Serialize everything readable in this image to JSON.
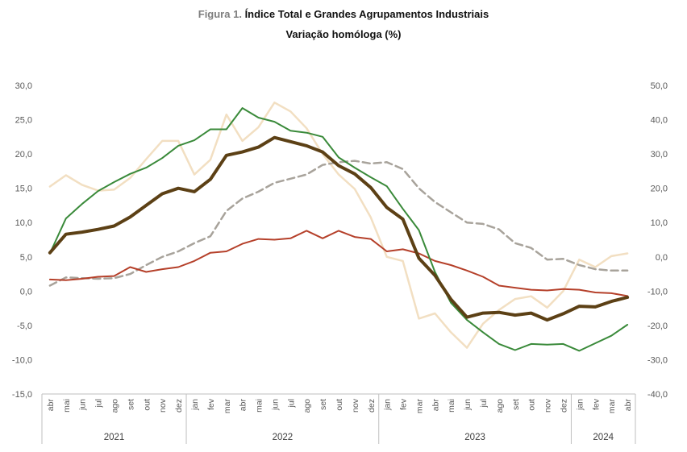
{
  "title": {
    "prefix": "Figura 1.",
    "text": "Índice Total e Grandes Agrupamentos Industriais"
  },
  "subtitle": "Variação homóloga (%)",
  "colors": {
    "total": "#5c4015",
    "green": "#3a8a3a",
    "red": "#b5402a",
    "gray": "#a8a39b",
    "beige": "#f2dfc2"
  },
  "chart_data": {
    "type": "line",
    "title": "Índice Total e Grandes Agrupamentos Industriais",
    "subtitle": "Variação homóloga (%)",
    "x_months": [
      "abr",
      "mai",
      "jun",
      "jul",
      "ago",
      "set",
      "out",
      "nov",
      "dez",
      "jan",
      "fev",
      "mar",
      "abr",
      "mai",
      "jun",
      "jul",
      "ago",
      "set",
      "out",
      "nov",
      "dez",
      "jan",
      "fev",
      "mar",
      "abr",
      "mai",
      "jun",
      "jul",
      "ago",
      "set",
      "out",
      "nov",
      "dez",
      "jan",
      "fev",
      "mar",
      "abr"
    ],
    "year_groups": [
      {
        "label": "2021",
        "start": 0,
        "end": 8
      },
      {
        "label": "2022",
        "start": 9,
        "end": 20
      },
      {
        "label": "2023",
        "start": 21,
        "end": 32
      },
      {
        "label": "2024",
        "start": 33,
        "end": 36
      }
    ],
    "y_left": {
      "min": -15,
      "max": 30,
      "step": 5,
      "ticks": [
        "-15,0",
        "-10,0",
        "-5,0",
        "0,0",
        "5,0",
        "10,0",
        "15,0",
        "20,0",
        "25,0",
        "30,0"
      ]
    },
    "y_right": {
      "min": -40,
      "max": 50,
      "step": 10,
      "ticks": [
        "-40,0",
        "-30,0",
        "-20,0",
        "-10,0",
        "0,0",
        "10,0",
        "20,0",
        "30,0",
        "40,0",
        "50,0"
      ]
    },
    "grid": false,
    "legend": "none",
    "series": [
      {
        "key": "beige",
        "axis": "right",
        "stroke_width": 2.5,
        "values": [
          20.5,
          23.8,
          21.0,
          19.3,
          19.6,
          23.0,
          28.5,
          33.8,
          33.8,
          24.0,
          28.3,
          41.5,
          33.8,
          37.8,
          45.0,
          42.4,
          37.5,
          30.0,
          24.0,
          19.8,
          11.5,
          0.0,
          -1.2,
          -18.0,
          -16.5,
          -22.0,
          -26.5,
          -19.5,
          -15.5,
          -12.3,
          -11.5,
          -14.8,
          -10.0,
          -0.8,
          -3.0,
          0.2,
          1.0
        ]
      },
      {
        "key": "gray",
        "axis": "left",
        "stroke_width": 2.5,
        "dash": "9,5",
        "values": [
          0.8,
          2.0,
          1.9,
          1.8,
          1.9,
          2.5,
          3.8,
          5.0,
          5.8,
          7.0,
          8.0,
          11.7,
          13.5,
          14.5,
          15.8,
          16.4,
          17.0,
          18.4,
          18.8,
          19.0,
          18.6,
          18.8,
          17.8,
          15.0,
          13.0,
          11.5,
          10.0,
          9.8,
          9.0,
          7.0,
          6.3,
          4.6,
          4.7,
          3.8,
          3.2,
          3.0,
          3.0
        ]
      },
      {
        "key": "red",
        "axis": "left",
        "stroke_width": 2,
        "values": [
          1.7,
          1.6,
          1.8,
          2.1,
          2.2,
          3.5,
          2.8,
          3.2,
          3.5,
          4.4,
          5.6,
          5.8,
          6.9,
          7.6,
          7.5,
          7.7,
          8.8,
          7.7,
          8.8,
          7.9,
          7.6,
          5.8,
          6.1,
          5.5,
          4.4,
          3.8,
          3.0,
          2.1,
          0.8,
          0.5,
          0.2,
          0.1,
          0.3,
          0.2,
          -0.2,
          -0.3,
          -0.7
        ]
      },
      {
        "key": "green",
        "axis": "left",
        "stroke_width": 2,
        "values": [
          5.5,
          10.6,
          12.7,
          14.6,
          15.9,
          17.1,
          18.0,
          19.4,
          21.2,
          22.0,
          23.6,
          23.6,
          26.7,
          25.3,
          24.7,
          23.4,
          23.1,
          22.5,
          19.5,
          18.0,
          16.6,
          15.3,
          12.0,
          8.9,
          2.8,
          -1.7,
          -4.2,
          -6.0,
          -7.7,
          -8.6,
          -7.7,
          -7.8,
          -7.7,
          -8.7,
          -7.6,
          -6.5,
          -4.9
        ]
      },
      {
        "key": "total",
        "axis": "left",
        "stroke_width": 4,
        "values": [
          5.6,
          8.3,
          8.6,
          9.0,
          9.5,
          10.8,
          12.5,
          14.2,
          15.0,
          14.5,
          16.3,
          19.8,
          20.3,
          21.0,
          22.4,
          21.8,
          21.2,
          20.3,
          18.3,
          17.1,
          15.1,
          12.2,
          10.5,
          4.8,
          2.3,
          -1.2,
          -3.8,
          -3.2,
          -3.1,
          -3.5,
          -3.2,
          -4.2,
          -3.3,
          -2.2,
          -2.3,
          -1.5,
          -0.9
        ]
      }
    ]
  }
}
